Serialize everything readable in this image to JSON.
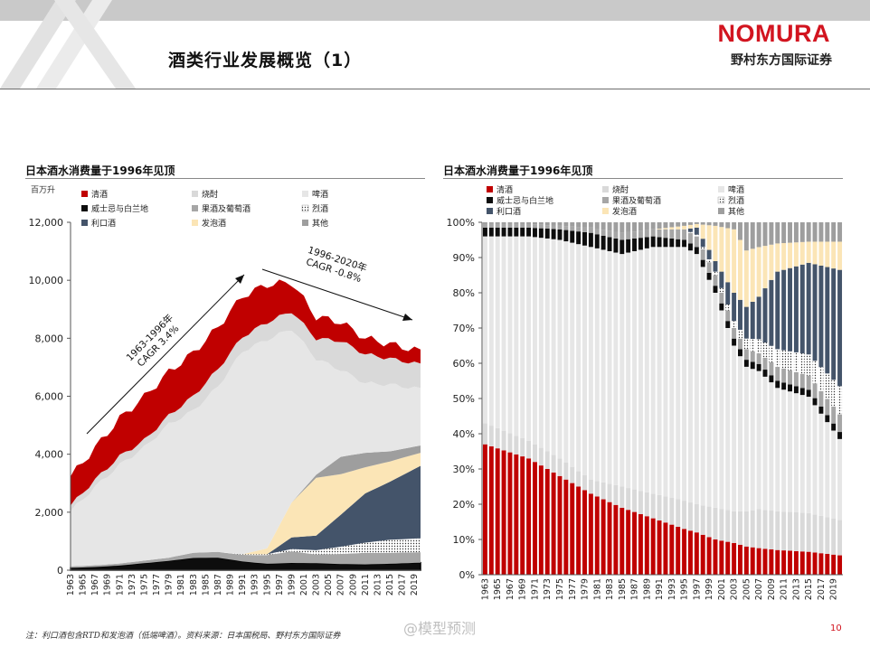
{
  "header": {
    "title": "酒类行业发展概览（1）",
    "logo": "NOMURA",
    "company": "野村东方国际证券"
  },
  "colors": {
    "brand_red": "#d2141f",
    "清酒": "#c00000",
    "烧酎": "#d9d9d9",
    "啤酒": "#e6e6e6",
    "威士忌与白兰地": "#0d0d0d",
    "果酒及葡萄酒": "#a6a6a6",
    "烈酒": "#7f7f7f",
    "利口酒": "#44546a",
    "发泡酒": "#fbe5b6",
    "其他": "#9e9e9e"
  },
  "footnote": "注：利口酒包含RTD和发泡酒（低端啤酒）。资料来源：日本国税局、野村东方国际证券",
  "page_number": "10",
  "watermark": "@模型预测",
  "chart_data": [
    {
      "type": "area",
      "stacked": true,
      "title": "日本酒水消费量于1996年见顶",
      "ylabel": "百万升",
      "ylim": [
        0,
        12000
      ],
      "yticks": [
        "0",
        "2,000",
        "4,000",
        "6,000",
        "8,000",
        "10,000",
        "12,000"
      ],
      "grid": false,
      "legend_position": "top",
      "x_tick_labels": [
        "1963",
        "1965",
        "1967",
        "1969",
        "1971",
        "1973",
        "1975",
        "1977",
        "1979",
        "1981",
        "1983",
        "1985",
        "1987",
        "1989",
        "1991",
        "1993",
        "1995",
        "1997",
        "1999",
        "2001",
        "2003",
        "2005",
        "2007",
        "2009",
        "2011",
        "2013",
        "2015",
        "2017",
        "2019"
      ],
      "x": [
        1963,
        1967,
        1971,
        1975,
        1979,
        1983,
        1987,
        1991,
        1995,
        1999,
        2003,
        2007,
        2011,
        2015,
        2020
      ],
      "series": [
        {
          "name": "威士忌与白兰地",
          "values": [
            80,
            110,
            160,
            240,
            320,
            420,
            430,
            300,
            220,
            250,
            240,
            210,
            200,
            220,
            260
          ]
        },
        {
          "name": "果酒及葡萄酒",
          "values": [
            50,
            60,
            70,
            90,
            110,
            180,
            200,
            230,
            300,
            400,
            300,
            350,
            400,
            380,
            360
          ]
        },
        {
          "name": "烈酒",
          "values": [
            0,
            0,
            0,
            0,
            0,
            0,
            0,
            20,
            30,
            80,
            150,
            250,
            350,
            450,
            480
          ]
        },
        {
          "name": "利口酒",
          "values": [
            0,
            0,
            0,
            0,
            0,
            0,
            0,
            0,
            0,
            400,
            500,
            1100,
            1700,
            2000,
            2500
          ]
        },
        {
          "name": "发泡酒",
          "values": [
            0,
            0,
            0,
            0,
            0,
            0,
            0,
            0,
            200,
            1200,
            2000,
            1400,
            900,
            700,
            450
          ]
        },
        {
          "name": "其他",
          "values": [
            0,
            0,
            0,
            0,
            0,
            0,
            0,
            0,
            0,
            0,
            100,
            600,
            500,
            350,
            250
          ]
        },
        {
          "name": "啤酒",
          "values": [
            1900,
            2700,
            3400,
            3900,
            4600,
            4900,
            5700,
            7000,
            7200,
            6000,
            4000,
            3000,
            2400,
            2300,
            1950
          ]
        },
        {
          "name": "烧酎",
          "values": [
            200,
            250,
            300,
            250,
            300,
            500,
            600,
            500,
            600,
            600,
            700,
            1000,
            1000,
            900,
            850
          ]
        },
        {
          "name": "清酒",
          "values": [
            1000,
            1100,
            1300,
            1500,
            1500,
            1500,
            1450,
            1400,
            1300,
            1000,
            750,
            650,
            550,
            500,
            450
          ]
        }
      ],
      "annotations": [
        {
          "text": "1963-1996年",
          "text2": "CAGR 3.4%"
        },
        {
          "text": "1996-2020年",
          "text2": "CAGR -0.8%"
        }
      ]
    },
    {
      "type": "bar",
      "stacked": true,
      "percent": true,
      "title": "日本酒水消费量于1996年见顶",
      "ylim": [
        0,
        100
      ],
      "yticks": [
        "0%",
        "10%",
        "20%",
        "30%",
        "40%",
        "50%",
        "60%",
        "70%",
        "80%",
        "90%",
        "100%"
      ],
      "grid": false,
      "legend_position": "top",
      "x_tick_labels": [
        "1963",
        "1965",
        "1967",
        "1969",
        "1971",
        "1973",
        "1975",
        "1977",
        "1979",
        "1981",
        "1983",
        "1985",
        "1987",
        "1989",
        "1991",
        "1993",
        "1995",
        "1997",
        "1999",
        "2001",
        "2003",
        "2005",
        "2007",
        "2009",
        "2011",
        "2013",
        "2015",
        "2017",
        "2019"
      ],
      "series_order": [
        "清酒",
        "烧酎",
        "啤酒",
        "威士忌与白兰地",
        "果酒及葡萄酒",
        "烈酒",
        "利口酒",
        "发泡酒",
        "其他"
      ],
      "key_years": [
        1963,
        1970,
        1975,
        1980,
        1985,
        1990,
        1995,
        1997,
        2000,
        2003,
        2005,
        2007,
        2010,
        2015,
        2020
      ],
      "values": {
        "清酒": [
          37,
          33,
          28,
          23,
          19,
          16,
          13,
          12,
          10,
          9,
          8,
          7.5,
          7,
          6.5,
          5.5
        ],
        "烧酎": [
          6,
          5,
          5,
          4,
          6,
          7,
          8,
          8,
          9,
          9,
          10,
          11,
          11,
          11,
          10
        ],
        "啤酒": [
          53,
          58,
          62,
          66,
          66,
          70,
          72,
          71,
          61,
          47,
          41,
          39,
          35,
          33,
          23
        ],
        "威士忌与白兰地": [
          2.5,
          2.5,
          3,
          4,
          4,
          3,
          2,
          2,
          2,
          2,
          2,
          2,
          2,
          2,
          2
        ],
        "果酒及葡萄酒": [
          1,
          1,
          1,
          1.5,
          2,
          2,
          3,
          3,
          3,
          3,
          3,
          3,
          4,
          4,
          5
        ],
        "烈酒": [
          0,
          0,
          0,
          0,
          0,
          0,
          0,
          0.5,
          1,
          2,
          3,
          4,
          5,
          6,
          8
        ],
        "利口酒": [
          0,
          0,
          0,
          0,
          0,
          0,
          0,
          2,
          3,
          8,
          9,
          12,
          22,
          26,
          33
        ],
        "发泡酒": [
          0,
          0,
          0,
          0,
          0,
          0,
          1,
          1,
          10,
          18,
          16,
          14,
          8,
          6,
          8
        ],
        "其他": [
          0.5,
          0.5,
          1,
          1.5,
          3,
          2,
          1,
          0.5,
          1,
          2,
          8,
          7,
          6,
          5.5,
          5.5
        ]
      }
    }
  ]
}
